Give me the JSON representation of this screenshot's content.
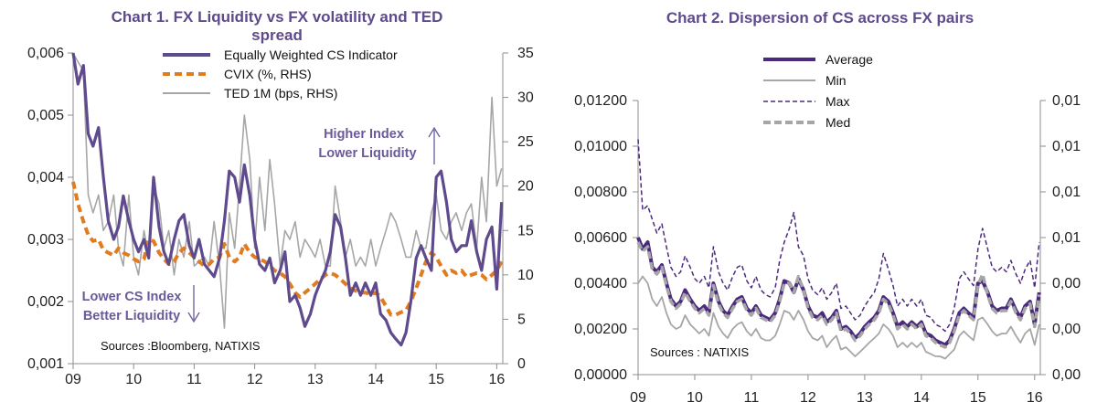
{
  "colors": {
    "purple": "#5e4a8c",
    "darkpurple": "#4b2a7d",
    "orange": "#e07b1f",
    "grey": "#a6a6a6",
    "midgrey": "#8c8c8c",
    "axis": "#8c8c8c"
  },
  "chart_data": [
    {
      "type": "line",
      "title_line1": "Chart 1. FX Liquidity vs  FX volatility and TED",
      "title_line2": "spread",
      "x_tick_labels": [
        "09",
        "10",
        "11",
        "12",
        "13",
        "14",
        "15",
        "16"
      ],
      "xlim": [
        2009.0,
        2016.1
      ],
      "ylim_left": [
        0.001,
        0.006
      ],
      "ylim_right": [
        0,
        35
      ],
      "y_left_tick_values": [
        0.001,
        0.002,
        0.003,
        0.004,
        0.005,
        0.006
      ],
      "y_left_tick_labels": [
        "0,001",
        "0,002",
        "0,003",
        "0,004",
        "0,005",
        "0,006"
      ],
      "y_right_tick_values": [
        0,
        5,
        10,
        15,
        20,
        25,
        30,
        35
      ],
      "y_right_tick_labels": [
        "0",
        "5",
        "10",
        "15",
        "20",
        "25",
        "30",
        "35"
      ],
      "legend_position": "top-center",
      "annotations": {
        "higher_1": "Higher Index",
        "higher_2": "Lower Liquidity",
        "lower_1": "Lower CS Index",
        "lower_2": "Better Liquidity",
        "source": "Sources :Bloomberg, NATIXIS"
      },
      "x": [
        2009.0,
        2009.08,
        2009.17,
        2009.25,
        2009.33,
        2009.42,
        2009.5,
        2009.58,
        2009.67,
        2009.75,
        2009.83,
        2009.92,
        2010.0,
        2010.08,
        2010.17,
        2010.25,
        2010.33,
        2010.42,
        2010.5,
        2010.58,
        2010.67,
        2010.75,
        2010.83,
        2010.92,
        2011.0,
        2011.08,
        2011.17,
        2011.25,
        2011.33,
        2011.42,
        2011.5,
        2011.58,
        2011.67,
        2011.75,
        2011.83,
        2011.92,
        2012.0,
        2012.08,
        2012.17,
        2012.25,
        2012.33,
        2012.42,
        2012.5,
        2012.58,
        2012.67,
        2012.75,
        2012.83,
        2012.92,
        2013.0,
        2013.08,
        2013.17,
        2013.25,
        2013.33,
        2013.42,
        2013.5,
        2013.58,
        2013.67,
        2013.75,
        2013.83,
        2013.92,
        2014.0,
        2014.08,
        2014.17,
        2014.25,
        2014.33,
        2014.42,
        2014.5,
        2014.58,
        2014.67,
        2014.75,
        2014.83,
        2014.92,
        2015.0,
        2015.08,
        2015.17,
        2015.25,
        2015.33,
        2015.42,
        2015.5,
        2015.58,
        2015.67,
        2015.75,
        2015.83,
        2015.92,
        2016.0,
        2016.08
      ],
      "series": [
        {
          "name": "Equally Weighted CS Indicator",
          "axis": "left",
          "values": [
            0.006,
            0.0055,
            0.0058,
            0.0047,
            0.0045,
            0.0048,
            0.004,
            0.0033,
            0.003,
            0.0032,
            0.0037,
            0.0033,
            0.003,
            0.0028,
            0.003,
            0.0027,
            0.004,
            0.0032,
            0.0028,
            0.0026,
            0.003,
            0.0033,
            0.0034,
            0.0029,
            0.0027,
            0.003,
            0.0026,
            0.0025,
            0.0024,
            0.0027,
            0.0033,
            0.0041,
            0.004,
            0.0036,
            0.0042,
            0.0037,
            0.003,
            0.0026,
            0.0025,
            0.0027,
            0.0023,
            0.0025,
            0.0028,
            0.002,
            0.0021,
            0.0019,
            0.0016,
            0.0018,
            0.0021,
            0.0023,
            0.0025,
            0.0028,
            0.0034,
            0.0032,
            0.0027,
            0.0021,
            0.0023,
            0.0021,
            0.0023,
            0.0021,
            0.0023,
            0.0018,
            0.0017,
            0.0015,
            0.0014,
            0.0013,
            0.0015,
            0.002,
            0.0027,
            0.0029,
            0.0027,
            0.0025,
            0.004,
            0.0041,
            0.0036,
            0.003,
            0.0028,
            0.0029,
            0.0029,
            0.0033,
            0.0028,
            0.0025,
            0.003,
            0.0032,
            0.0022,
            0.0036
          ]
        },
        {
          "name": "CVIX (%, RHS)",
          "axis": "right",
          "values": [
            20.5,
            18.0,
            16.0,
            14.5,
            13.8,
            14.0,
            12.8,
            12.5,
            12.2,
            13.0,
            12.5,
            12.2,
            11.8,
            11.5,
            11.8,
            14.0,
            13.8,
            12.5,
            11.8,
            11.2,
            11.5,
            12.5,
            13.0,
            12.5,
            12.0,
            11.5,
            11.0,
            11.2,
            11.8,
            12.0,
            13.5,
            12.0,
            11.5,
            12.0,
            13.5,
            12.5,
            12.0,
            11.8,
            11.5,
            11.0,
            10.5,
            10.2,
            9.8,
            9.0,
            8.0,
            7.5,
            8.0,
            8.5,
            9.0,
            9.5,
            10.0,
            10.2,
            10.0,
            9.5,
            9.0,
            8.5,
            8.2,
            8.0,
            8.0,
            7.8,
            8.0,
            7.5,
            6.5,
            5.5,
            5.5,
            5.8,
            6.0,
            7.0,
            8.5,
            10.0,
            11.5,
            12.5,
            12.0,
            11.0,
            10.0,
            10.5,
            10.2,
            10.5,
            9.8,
            10.0,
            10.2,
            10.0,
            9.5,
            10.0,
            10.5,
            11.5
          ]
        },
        {
          "name": "TED 1M (bps, RHS)",
          "axis": "right",
          "values": [
            35.0,
            34.0,
            33.0,
            19.0,
            17.0,
            19.0,
            15.0,
            16.0,
            19.0,
            13.0,
            11.0,
            19.0,
            12.0,
            10.0,
            15.0,
            12.0,
            20.0,
            18.0,
            13.0,
            15.0,
            10.0,
            14.0,
            12.0,
            16.0,
            11.0,
            11.5,
            12.0,
            11.0,
            16.0,
            11.0,
            4.0,
            17.0,
            13.0,
            20.0,
            28.0,
            23.0,
            13.0,
            21.0,
            15.0,
            23.0,
            18.0,
            11.0,
            15.0,
            14.0,
            16.0,
            12.0,
            14.0,
            13.0,
            12.0,
            14.0,
            11.0,
            11.0,
            20.0,
            16.0,
            12.0,
            14.0,
            11.0,
            12.0,
            11.0,
            14.0,
            11.0,
            13.0,
            15.0,
            17.0,
            16.0,
            14.0,
            12.0,
            12.0,
            15.0,
            13.0,
            13.0,
            17.0,
            19.0,
            15.0,
            14.0,
            16.0,
            17.0,
            15.0,
            17.0,
            18.0,
            13.0,
            21.0,
            16.0,
            30.0,
            20.0,
            22.0
          ]
        }
      ]
    },
    {
      "type": "line",
      "title": "Chart 2.  Dispersion of CS across FX pairs",
      "x_tick_labels": [
        "09",
        "10",
        "11",
        "12",
        "13",
        "14",
        "15",
        "16"
      ],
      "xlim": [
        2009.0,
        2016.1
      ],
      "ylim_left": [
        0,
        0.012
      ],
      "y_left_tick_values": [
        0,
        0.002,
        0.004,
        0.006,
        0.008,
        0.01,
        0.012
      ],
      "y_left_tick_labels": [
        "0,00000",
        "0,00200",
        "0,00400",
        "0,00600",
        "0,00800",
        "0,01000",
        "0,01200"
      ],
      "y_right_tick_labels": [
        "0,00",
        "0,00",
        "0,00",
        "0,01",
        "0,01",
        "0,01",
        "0,01"
      ],
      "legend_position": "top-left",
      "annotations": {
        "source": "Sources : NATIXIS"
      },
      "x": [
        2009.0,
        2009.08,
        2009.17,
        2009.25,
        2009.33,
        2009.42,
        2009.5,
        2009.58,
        2009.67,
        2009.75,
        2009.83,
        2009.92,
        2010.0,
        2010.08,
        2010.17,
        2010.25,
        2010.33,
        2010.42,
        2010.5,
        2010.58,
        2010.67,
        2010.75,
        2010.83,
        2010.92,
        2011.0,
        2011.08,
        2011.17,
        2011.25,
        2011.33,
        2011.42,
        2011.5,
        2011.58,
        2011.67,
        2011.75,
        2011.83,
        2011.92,
        2012.0,
        2012.08,
        2012.17,
        2012.25,
        2012.33,
        2012.42,
        2012.5,
        2012.58,
        2012.67,
        2012.75,
        2012.83,
        2012.92,
        2013.0,
        2013.08,
        2013.17,
        2013.25,
        2013.33,
        2013.42,
        2013.5,
        2013.58,
        2013.67,
        2013.75,
        2013.83,
        2013.92,
        2014.0,
        2014.08,
        2014.17,
        2014.25,
        2014.33,
        2014.42,
        2014.5,
        2014.58,
        2014.67,
        2014.75,
        2014.83,
        2014.92,
        2015.0,
        2015.08,
        2015.17,
        2015.25,
        2015.33,
        2015.42,
        2015.5,
        2015.58,
        2015.67,
        2015.75,
        2015.83,
        2015.92,
        2016.0,
        2016.08
      ],
      "series": [
        {
          "name": "Average",
          "values": [
            0.006,
            0.0055,
            0.0058,
            0.0047,
            0.0045,
            0.0048,
            0.004,
            0.0033,
            0.003,
            0.0032,
            0.0037,
            0.0033,
            0.003,
            0.0028,
            0.003,
            0.0027,
            0.004,
            0.0032,
            0.0028,
            0.0026,
            0.003,
            0.0033,
            0.0034,
            0.0029,
            0.0027,
            0.003,
            0.0026,
            0.0025,
            0.0024,
            0.0027,
            0.0033,
            0.0041,
            0.004,
            0.0036,
            0.0042,
            0.0037,
            0.003,
            0.0026,
            0.0025,
            0.0027,
            0.0023,
            0.0025,
            0.0028,
            0.002,
            0.0021,
            0.0019,
            0.0016,
            0.0018,
            0.0021,
            0.0023,
            0.0025,
            0.0028,
            0.0034,
            0.0032,
            0.0027,
            0.0021,
            0.0023,
            0.0021,
            0.0023,
            0.0021,
            0.0023,
            0.0018,
            0.0017,
            0.0015,
            0.0014,
            0.0013,
            0.0015,
            0.002,
            0.0027,
            0.0029,
            0.0027,
            0.0025,
            0.004,
            0.0041,
            0.0036,
            0.003,
            0.0028,
            0.0029,
            0.0029,
            0.0033,
            0.0028,
            0.0025,
            0.003,
            0.0032,
            0.0022,
            0.0036
          ]
        },
        {
          "name": "Min",
          "values": [
            0.004,
            0.0043,
            0.004,
            0.0033,
            0.003,
            0.0034,
            0.0027,
            0.0022,
            0.002,
            0.0021,
            0.0026,
            0.0022,
            0.002,
            0.0018,
            0.002,
            0.0017,
            0.0027,
            0.0021,
            0.0018,
            0.0016,
            0.002,
            0.0022,
            0.0023,
            0.0019,
            0.0017,
            0.002,
            0.0016,
            0.0015,
            0.0015,
            0.0017,
            0.0022,
            0.0028,
            0.0027,
            0.0024,
            0.0028,
            0.0024,
            0.0019,
            0.0016,
            0.0015,
            0.0017,
            0.0012,
            0.0015,
            0.0017,
            0.0011,
            0.0012,
            0.001,
            0.0008,
            0.001,
            0.0012,
            0.0014,
            0.0016,
            0.0018,
            0.0022,
            0.002,
            0.0017,
            0.0012,
            0.0014,
            0.0012,
            0.0014,
            0.0012,
            0.0014,
            0.001,
            0.0009,
            0.0008,
            0.0008,
            0.0007,
            0.0009,
            0.0011,
            0.0017,
            0.0019,
            0.0017,
            0.0015,
            0.0024,
            0.0025,
            0.0022,
            0.0019,
            0.0017,
            0.0018,
            0.0018,
            0.0021,
            0.0017,
            0.0014,
            0.0018,
            0.002,
            0.0013,
            0.0022
          ]
        },
        {
          "name": "Max",
          "values": [
            0.0103,
            0.0072,
            0.0074,
            0.0068,
            0.0062,
            0.0066,
            0.0056,
            0.0047,
            0.0043,
            0.0045,
            0.0052,
            0.0047,
            0.0042,
            0.004,
            0.0043,
            0.0038,
            0.0056,
            0.0045,
            0.004,
            0.0037,
            0.0043,
            0.0047,
            0.0048,
            0.0041,
            0.0038,
            0.0043,
            0.0037,
            0.0035,
            0.0034,
            0.0038,
            0.005,
            0.0058,
            0.0064,
            0.0071,
            0.0056,
            0.0052,
            0.0042,
            0.0037,
            0.0035,
            0.0038,
            0.0033,
            0.0036,
            0.004,
            0.0029,
            0.003,
            0.0027,
            0.0024,
            0.0026,
            0.003,
            0.0033,
            0.0036,
            0.0042,
            0.0053,
            0.0046,
            0.0039,
            0.003,
            0.0033,
            0.003,
            0.0033,
            0.003,
            0.0033,
            0.0026,
            0.0025,
            0.0022,
            0.0021,
            0.0019,
            0.0022,
            0.0029,
            0.0042,
            0.0045,
            0.0042,
            0.0039,
            0.0055,
            0.0064,
            0.0055,
            0.0047,
            0.0045,
            0.0047,
            0.0045,
            0.005,
            0.0044,
            0.004,
            0.0046,
            0.005,
            0.0038,
            0.0058
          ]
        },
        {
          "name": "Med",
          "values": [
            0.0058,
            0.0054,
            0.0056,
            0.0046,
            0.0044,
            0.0047,
            0.0039,
            0.0032,
            0.0029,
            0.0031,
            0.0036,
            0.0032,
            0.0029,
            0.0027,
            0.0029,
            0.0026,
            0.0039,
            0.0031,
            0.0027,
            0.0025,
            0.0029,
            0.0032,
            0.0033,
            0.0028,
            0.0026,
            0.0029,
            0.0025,
            0.0024,
            0.0023,
            0.0026,
            0.0032,
            0.004,
            0.004,
            0.0036,
            0.0043,
            0.0037,
            0.0029,
            0.0025,
            0.0024,
            0.0026,
            0.0022,
            0.0024,
            0.0027,
            0.0019,
            0.002,
            0.0018,
            0.0015,
            0.0017,
            0.002,
            0.0022,
            0.0024,
            0.0027,
            0.0033,
            0.0031,
            0.0026,
            0.002,
            0.0022,
            0.002,
            0.0022,
            0.002,
            0.0022,
            0.0017,
            0.0016,
            0.0014,
            0.0013,
            0.0012,
            0.0014,
            0.0019,
            0.0026,
            0.0028,
            0.0026,
            0.0024,
            0.0039,
            0.0044,
            0.0035,
            0.0029,
            0.0027,
            0.0028,
            0.0028,
            0.0032,
            0.0027,
            0.0024,
            0.0029,
            0.0031,
            0.0021,
            0.0035
          ]
        }
      ]
    }
  ]
}
